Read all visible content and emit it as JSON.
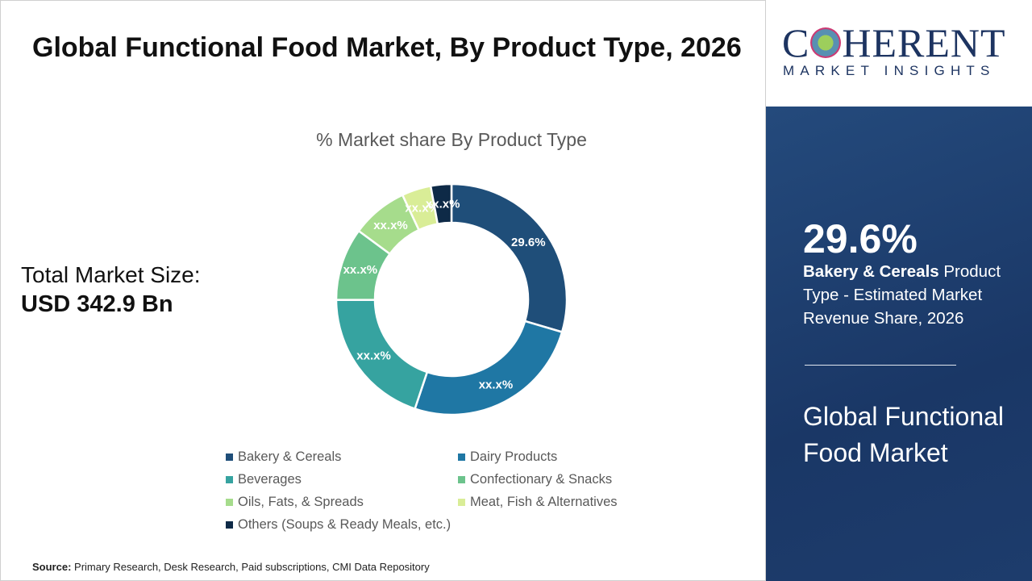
{
  "header": {
    "title": "Global Functional Food Market, By Product Type, 2026"
  },
  "total": {
    "label": "Total Market Size:",
    "value": "USD 342.9 Bn"
  },
  "source": {
    "label": "Source:",
    "text": " Primary Research, Desk Research, Paid subscriptions, CMI Data Repository"
  },
  "logo": {
    "main": "COHERENT",
    "sub": "MARKET INSIGHTS"
  },
  "panel": {
    "value": "29.6%",
    "highlight": "Bakery & Cereals",
    "desc": " Product Type - Estimated Market Revenue Share, 2026",
    "market_name": "Global Functional Food Market"
  },
  "chart_data": {
    "type": "pie",
    "subtype": "donut",
    "title": "% Market share By Product Type",
    "legend_position": "bottom",
    "categories": [
      "Bakery & Cereals",
      "Dairy Products",
      "Beverages",
      "Confectionary & Snacks",
      "Oils, Fats, & Spreads",
      "Meat, Fish & Alternatives",
      "Others (Soups & Ready Meals, etc.)"
    ],
    "values": [
      29.6,
      25.6,
      19.8,
      10.2,
      7.9,
      4.1,
      2.9
    ],
    "labels": [
      "29.6%",
      "xx.x%",
      "xx.x%",
      "xx.x%",
      "xx.x%",
      "xx.x%",
      "xx.x%"
    ],
    "colors": [
      "#1f4e79",
      "#1f77a4",
      "#36a3a0",
      "#6cc38c",
      "#a6dc8c",
      "#d9ed97",
      "#0e2a47"
    ]
  }
}
